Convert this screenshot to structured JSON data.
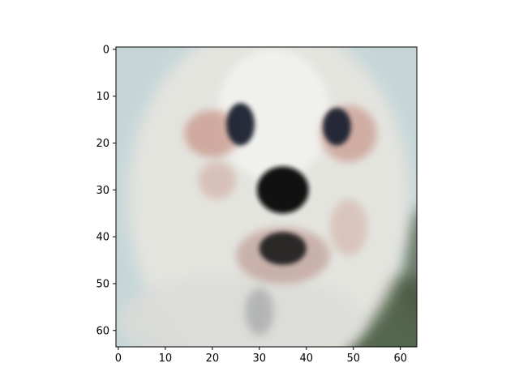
{
  "figure": {
    "background": "#ffffff",
    "image_subject": "dog-face"
  },
  "chart_data": {
    "type": "heatmap",
    "title": "",
    "xlabel": "",
    "ylabel": "",
    "image_size": [
      64,
      64
    ],
    "xlim": [
      -0.5,
      63.5
    ],
    "ylim": [
      63.5,
      -0.5
    ],
    "y_inverted": true,
    "grid": false,
    "x_ticks": [
      0,
      10,
      20,
      30,
      40,
      50,
      60
    ],
    "y_ticks": [
      0,
      10,
      20,
      30,
      40,
      50,
      60
    ],
    "x_tick_labels": [
      "0",
      "10",
      "20",
      "30",
      "40",
      "50",
      "60"
    ],
    "y_tick_labels": [
      "0",
      "10",
      "20",
      "30",
      "40",
      "50",
      "60"
    ],
    "features": {
      "fur_color": "#e4e4df",
      "ear_tint_color": "#c8968a",
      "eye_color": "#1c2230",
      "nose_color": "#0c0c10",
      "mouth_color": "#202024",
      "foliage_color": "#4a5a40",
      "sky_color": "#c6d6d8"
    }
  }
}
